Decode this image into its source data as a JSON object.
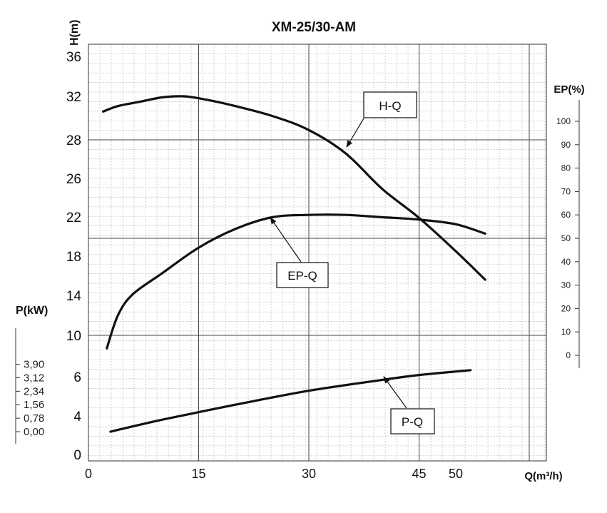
{
  "chart_data": {
    "type": "line",
    "title": "XM-25/30-AM",
    "x": {
      "label": "Q(m³/h)",
      "ticks": [
        0,
        15,
        30,
        45,
        50
      ],
      "range": [
        0,
        60
      ]
    },
    "y_left": {
      "label": "H(m)",
      "ticks": [
        0,
        4,
        6,
        10,
        14,
        18,
        22,
        26,
        28,
        32,
        36
      ],
      "range": [
        0,
        36
      ]
    },
    "y_right": {
      "label": "EP(%)",
      "ticks": [
        0,
        10,
        20,
        30,
        40,
        50,
        60,
        70,
        80,
        90,
        100
      ]
    },
    "y_power": {
      "label": "P(kW)",
      "ticks": [
        "0,00",
        "0,78",
        "1,56",
        "2,34",
        "3,12",
        "3,90"
      ]
    },
    "series": [
      {
        "name": "H-Q",
        "axis": "H",
        "points": [
          [
            2,
            30.6
          ],
          [
            4,
            31.1
          ],
          [
            7,
            31.5
          ],
          [
            10,
            31.9
          ],
          [
            13,
            32.0
          ],
          [
            16,
            31.7
          ],
          [
            20,
            31.1
          ],
          [
            25,
            30.2
          ],
          [
            30,
            28.9
          ],
          [
            35,
            27.3
          ],
          [
            40,
            24.9
          ],
          [
            45,
            21.9
          ],
          [
            50,
            18.5
          ],
          [
            54,
            15.6
          ]
        ]
      },
      {
        "name": "EP-Q",
        "axis": "EP",
        "points": [
          [
            2.5,
            3
          ],
          [
            4,
            17
          ],
          [
            6,
            26
          ],
          [
            10,
            35
          ],
          [
            15,
            46
          ],
          [
            20,
            54
          ],
          [
            25,
            59
          ],
          [
            30,
            60
          ],
          [
            35,
            60
          ],
          [
            40,
            59
          ],
          [
            45,
            58
          ],
          [
            50,
            56
          ],
          [
            54,
            52
          ]
        ]
      },
      {
        "name": "P-Q",
        "axis": "P",
        "points": [
          [
            3,
            0
          ],
          [
            10,
            0.69
          ],
          [
            20,
            1.56
          ],
          [
            30,
            2.37
          ],
          [
            40,
            3.0
          ],
          [
            45,
            3.28
          ],
          [
            52,
            3.56
          ]
        ]
      }
    ],
    "annotations": [
      "H-Q",
      "EP-Q",
      "P-Q"
    ],
    "grid": true
  }
}
